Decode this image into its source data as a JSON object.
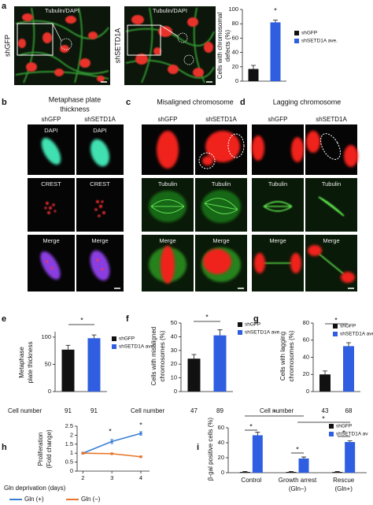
{
  "panel_labels": [
    "a",
    "b",
    "c",
    "d",
    "e",
    "f",
    "g",
    "h",
    "i"
  ],
  "images": {
    "a": {
      "titles": [
        "Tubulin/DAPI",
        "Tubulin/DAPI"
      ],
      "rows": [
        "shGFP",
        "shSETD1A"
      ]
    },
    "b": {
      "title": [
        "Metaphase plate",
        "thickness"
      ],
      "columns": [
        "shGFP",
        "shSETD1A"
      ],
      "labels": [
        [
          "DAPI",
          "DAPI"
        ],
        [
          "CREST",
          "CREST"
        ],
        [
          "Merge",
          "Merge"
        ]
      ]
    },
    "c": {
      "title": [
        "Misaligned chromosome"
      ],
      "columns": [
        "shGFP",
        "shSETD1A"
      ],
      "labels": [
        [
          "Tubulin",
          "Tubulin"
        ],
        [
          "Merge",
          "Merge"
        ]
      ]
    },
    "d": {
      "title": [
        "Lagging chromosome"
      ],
      "columns": [
        "shGFP",
        "shSETD1A"
      ],
      "labels": [
        [
          "Tubulin",
          "Tubulin"
        ],
        [
          "Merge",
          "Merge"
        ]
      ]
    }
  },
  "chart_data": [
    {
      "type": "bar",
      "ylabel": [
        "Cells with chromosomal",
        "defects (%)"
      ],
      "series": [
        {
          "name": "shGFP",
          "color": "#111111",
          "values": [
            17
          ],
          "errors": [
            5
          ]
        },
        {
          "name": "shSETD1A ave.",
          "color": "#2f5fe0",
          "values": [
            82
          ],
          "errors": [
            3
          ]
        }
      ],
      "ylim": [
        0,
        100
      ],
      "yticks": [
        0,
        20,
        40,
        60,
        80,
        100
      ],
      "annotations": [
        "*"
      ]
    },
    {
      "type": "bar",
      "ylabel": [
        "Metaphase",
        "plate thickness"
      ],
      "series": [
        {
          "name": "shGFP",
          "color": "#111111",
          "values": [
            77
          ],
          "errors": [
            8
          ]
        },
        {
          "name": "shSETD1A ave.",
          "color": "#2f5fe0",
          "values": [
            98
          ],
          "errors": [
            6
          ]
        }
      ],
      "ylim": [
        0,
        110
      ],
      "yticks": [
        0,
        50,
        100
      ],
      "annotations": [
        "*"
      ],
      "cell_label": "Cell number",
      "cell_numbers": [
        91,
        91
      ]
    },
    {
      "type": "bar",
      "ylabel": [
        "Cells with misaligned",
        "chromosomes (%)"
      ],
      "series": [
        {
          "name": "shGFP",
          "color": "#111111",
          "values": [
            24
          ],
          "errors": [
            3
          ]
        },
        {
          "name": "shSETD1A ave.",
          "color": "#2f5fe0",
          "values": [
            41
          ],
          "errors": [
            4
          ]
        }
      ],
      "ylim": [
        0,
        50
      ],
      "yticks": [
        0,
        10,
        20,
        30,
        40,
        50
      ],
      "annotations": [
        "*"
      ],
      "cell_label": "Cell number",
      "cell_numbers": [
        47,
        89
      ]
    },
    {
      "type": "bar",
      "ylabel": [
        "Cells with lagging",
        "chromosomes (%)"
      ],
      "series": [
        {
          "name": "shGFP",
          "color": "#111111",
          "values": [
            20
          ],
          "errors": [
            4
          ]
        },
        {
          "name": "shSETD1A ave.",
          "color": "#2f5fe0",
          "values": [
            53
          ],
          "errors": [
            4
          ]
        }
      ],
      "ylim": [
        0,
        80
      ],
      "yticks": [
        0,
        20,
        40,
        60,
        80
      ],
      "annotations": [
        "*"
      ],
      "cell_label": "Cell number",
      "cell_numbers": [
        43,
        68
      ]
    },
    {
      "type": "line",
      "ylabel": [
        "Proliferation",
        "(Fold change)"
      ],
      "xlabel": "Gln deprivation (days)",
      "x": [
        2,
        3,
        4
      ],
      "series": [
        {
          "name": "Gln (+)",
          "color": "#3a7fd5",
          "values": [
            1.0,
            1.65,
            2.1
          ],
          "errors": [
            0.05,
            0.12,
            0.1
          ]
        },
        {
          "name": "Gln (–)",
          "color": "#e8742a",
          "values": [
            1.0,
            0.97,
            0.8
          ],
          "errors": [
            0.03,
            0.03,
            0.03
          ]
        }
      ],
      "xlim": [
        1.8,
        4.3
      ],
      "xticks": [
        2,
        3,
        4
      ],
      "ylim": [
        0,
        2.5
      ],
      "yticks": [
        0,
        0.5,
        1,
        1.5,
        2,
        2.5
      ],
      "annotations": [
        "*",
        "*"
      ]
    },
    {
      "type": "bar",
      "ylabel": [
        "β-gal positive cells (%)"
      ],
      "categories": [
        [
          "Control"
        ],
        [
          "Growth arrest",
          "(Gln–)"
        ],
        [
          "Rescue",
          "(Gln+)"
        ]
      ],
      "series": [
        {
          "name": "shGFP",
          "color": "#111111",
          "values": [
            1,
            1,
            1
          ],
          "errors": [
            0.5,
            0.5,
            0.5
          ]
        },
        {
          "name": "shSETD1A av",
          "color": "#2f5fe0",
          "values": [
            50,
            19,
            41
          ],
          "errors": [
            4,
            2,
            1.5
          ]
        }
      ],
      "ylim": [
        0,
        60
      ],
      "yticks": [
        0,
        20,
        40,
        60
      ],
      "annotations": [
        "*",
        "*",
        "*",
        "*",
        "*"
      ]
    }
  ]
}
